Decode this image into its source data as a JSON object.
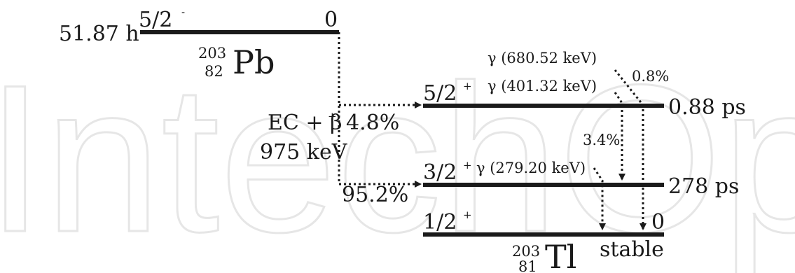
{
  "watermark": "IntechOpen",
  "parent": {
    "half_life": "51.87 h",
    "spin": "5/2",
    "spin_parity": "-",
    "energy": "0",
    "nuclide_mass": "203",
    "nuclide_z": "82",
    "nuclide_symbol": "Pb"
  },
  "decay": {
    "mode_base": "EC + β",
    "mode_sup": "+",
    "q_value": "975 keV",
    "branch_upper": "4.8%",
    "branch_lower": "95.2%"
  },
  "levels": [
    {
      "spin": "5/2",
      "parity": "+",
      "right_label": "0.88 ps"
    },
    {
      "spin": "3/2",
      "parity": "+",
      "right_label": "278 ps"
    },
    {
      "spin": "1/2",
      "parity": "+",
      "right_label": "0"
    }
  ],
  "gammas": [
    {
      "label": "γ (680.52 keV)",
      "intensity": "0.8%"
    },
    {
      "label": "γ (401.32 keV)",
      "intensity": "3.4%"
    },
    {
      "label": "γ (279.20 keV)",
      "intensity": ""
    }
  ],
  "daughter": {
    "nuclide_mass": "203",
    "nuclide_z": "81",
    "nuclide_symbol": "Tl",
    "stability": "stable"
  }
}
